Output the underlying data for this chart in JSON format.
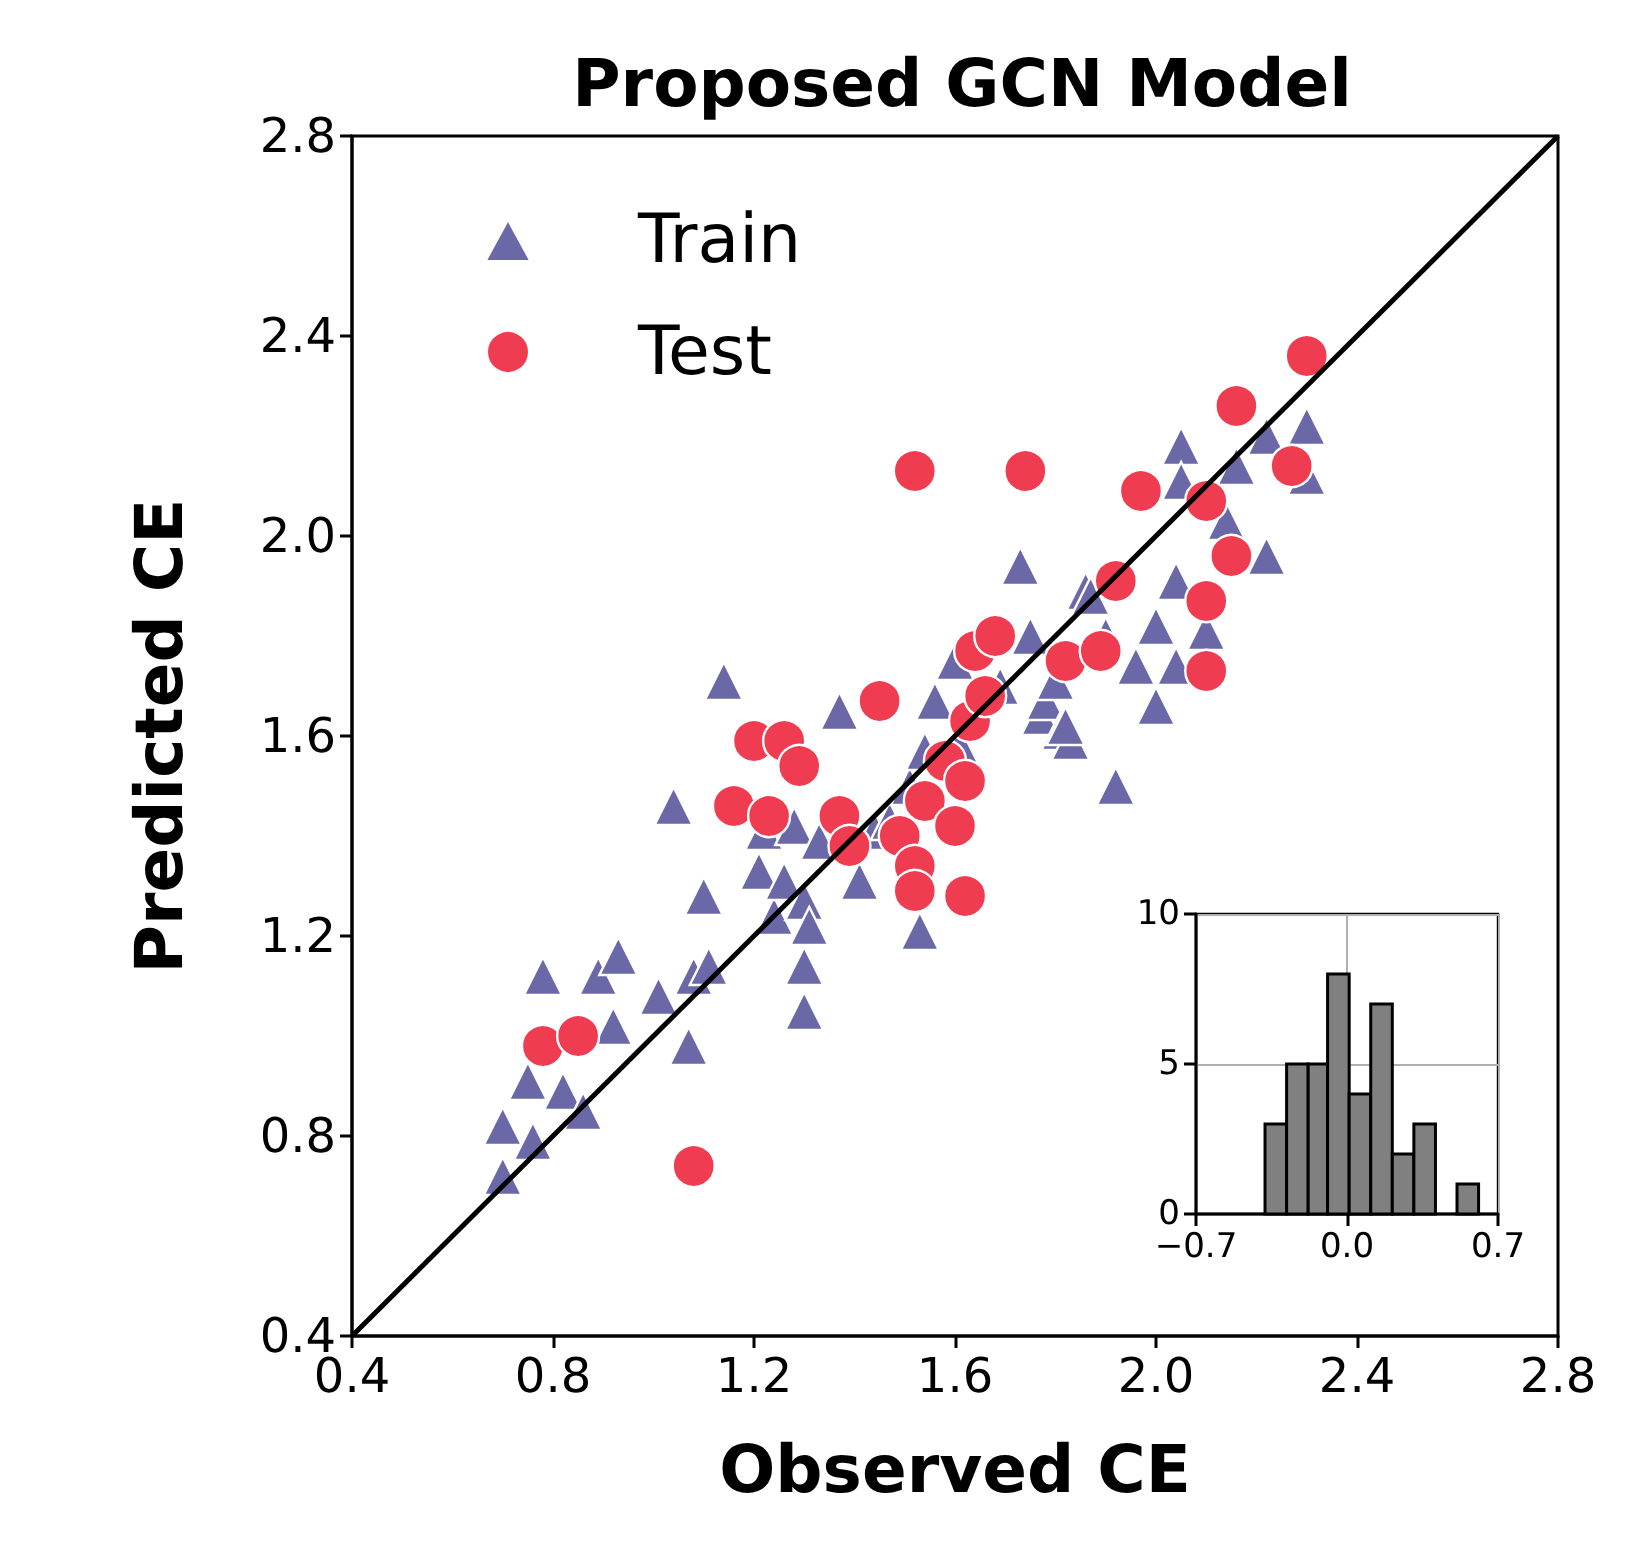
{
  "chart_data": [
    {
      "type": "scatter",
      "title": "Proposed GCN Model",
      "xlabel": "Observed CE",
      "ylabel": "Predicted CE",
      "xlim": [
        0.4,
        2.8
      ],
      "ylim": [
        0.4,
        2.8
      ],
      "xticks": [
        0.4,
        0.8,
        1.2,
        1.6,
        {
          "value": 2,
          "label": "2.0"
        },
        2.4,
        2.8
      ],
      "yticks": [
        0.4,
        0.8,
        1.2,
        1.6,
        {
          "value": 2,
          "label": "2.0"
        },
        2.4,
        2.8
      ],
      "grid": false,
      "legend": "top left",
      "series": [
        {
          "name": "Train",
          "color": "#6b68a8",
          "marker": "triangle",
          "x": [
            0.7,
            0.7,
            0.75,
            0.76,
            0.78,
            0.82,
            0.86,
            0.89,
            0.92,
            0.93,
            1.01,
            1.04,
            1.07,
            1.08,
            1.1,
            1.11,
            1.14,
            1.21,
            1.22,
            1.24,
            1.26,
            1.28,
            1.3,
            1.3,
            1.3,
            1.31,
            1.33,
            1.37,
            1.41,
            1.44,
            1.47,
            1.51,
            1.53,
            1.54,
            1.56,
            1.6,
            1.61,
            1.69,
            1.73,
            1.75,
            1.77,
            1.78,
            1.8,
            1.81,
            1.83,
            1.82,
            1.86,
            1.87,
            1.9,
            1.92,
            1.96,
            2.0,
            2.0,
            2.04,
            2.04,
            2.05,
            2.05,
            2.1,
            2.14,
            2.16,
            2.22,
            2.22,
            2.3,
            2.3
          ],
          "values": [
            0.72,
            0.82,
            0.91,
            0.79,
            1.12,
            0.89,
            0.85,
            1.12,
            1.02,
            1.16,
            1.08,
            1.46,
            0.98,
            1.12,
            1.28,
            1.14,
            1.71,
            1.33,
            1.41,
            1.24,
            1.31,
            1.42,
            1.27,
            1.14,
            1.05,
            1.22,
            1.39,
            1.65,
            1.31,
            1.41,
            1.43,
            1.5,
            1.21,
            1.57,
            1.67,
            1.75,
            1.58,
            1.7,
            1.94,
            1.8,
            1.64,
            1.67,
            1.71,
            1.61,
            1.59,
            1.62,
            1.89,
            1.88,
            1.8,
            1.5,
            1.74,
            1.82,
            1.66,
            1.91,
            1.74,
            2.18,
            2.11,
            1.81,
            2.03,
            2.14,
            2.2,
            1.96,
            2.22,
            2.12
          ]
        },
        {
          "name": "Test",
          "color": "#f03c50",
          "marker": "circle",
          "x": [
            0.78,
            0.85,
            1.08,
            1.16,
            1.2,
            1.23,
            1.26,
            1.29,
            1.37,
            1.39,
            1.45,
            1.49,
            1.52,
            1.52,
            1.52,
            1.54,
            1.58,
            1.6,
            1.62,
            1.62,
            1.63,
            1.64,
            1.66,
            1.68,
            1.74,
            1.82,
            1.89,
            1.92,
            1.97,
            2.1,
            2.1,
            2.1,
            2.15,
            2.16,
            2.27,
            2.3
          ],
          "values": [
            0.98,
            1.0,
            0.74,
            1.46,
            1.59,
            1.44,
            1.59,
            1.54,
            1.44,
            1.38,
            1.67,
            1.4,
            2.13,
            1.34,
            1.29,
            1.47,
            1.55,
            1.42,
            1.51,
            1.28,
            1.63,
            1.77,
            1.68,
            1.8,
            2.13,
            1.75,
            1.77,
            1.91,
            2.09,
            1.87,
            1.73,
            2.07,
            1.96,
            2.26,
            2.14,
            2.36
          ]
        },
        {
          "type": "line",
          "color": "#000000",
          "marker": "none",
          "x": [
            0.4,
            2.8
          ],
          "values": [
            0.4,
            2.8
          ]
        }
      ]
    },
    {
      "type": "histogram",
      "bins": [
        -0.38,
        -0.28,
        -0.18,
        -0.09,
        0.01,
        0.11,
        0.21,
        0.31,
        0.41,
        0.51,
        0.61
      ],
      "values": [
        3,
        5,
        5,
        8,
        4,
        7,
        2,
        3,
        0,
        1
      ],
      "color": "#808080",
      "xlim": [
        -0.7,
        0.7
      ],
      "xticks": [
        {
          "value": -0.7,
          "label": "−0.7"
        },
        {
          "value": 0,
          "label": "0.0"
        },
        0.7
      ],
      "ylim": [
        0,
        10
      ],
      "yticks": [
        0,
        5,
        10
      ],
      "grid": true
    }
  ]
}
